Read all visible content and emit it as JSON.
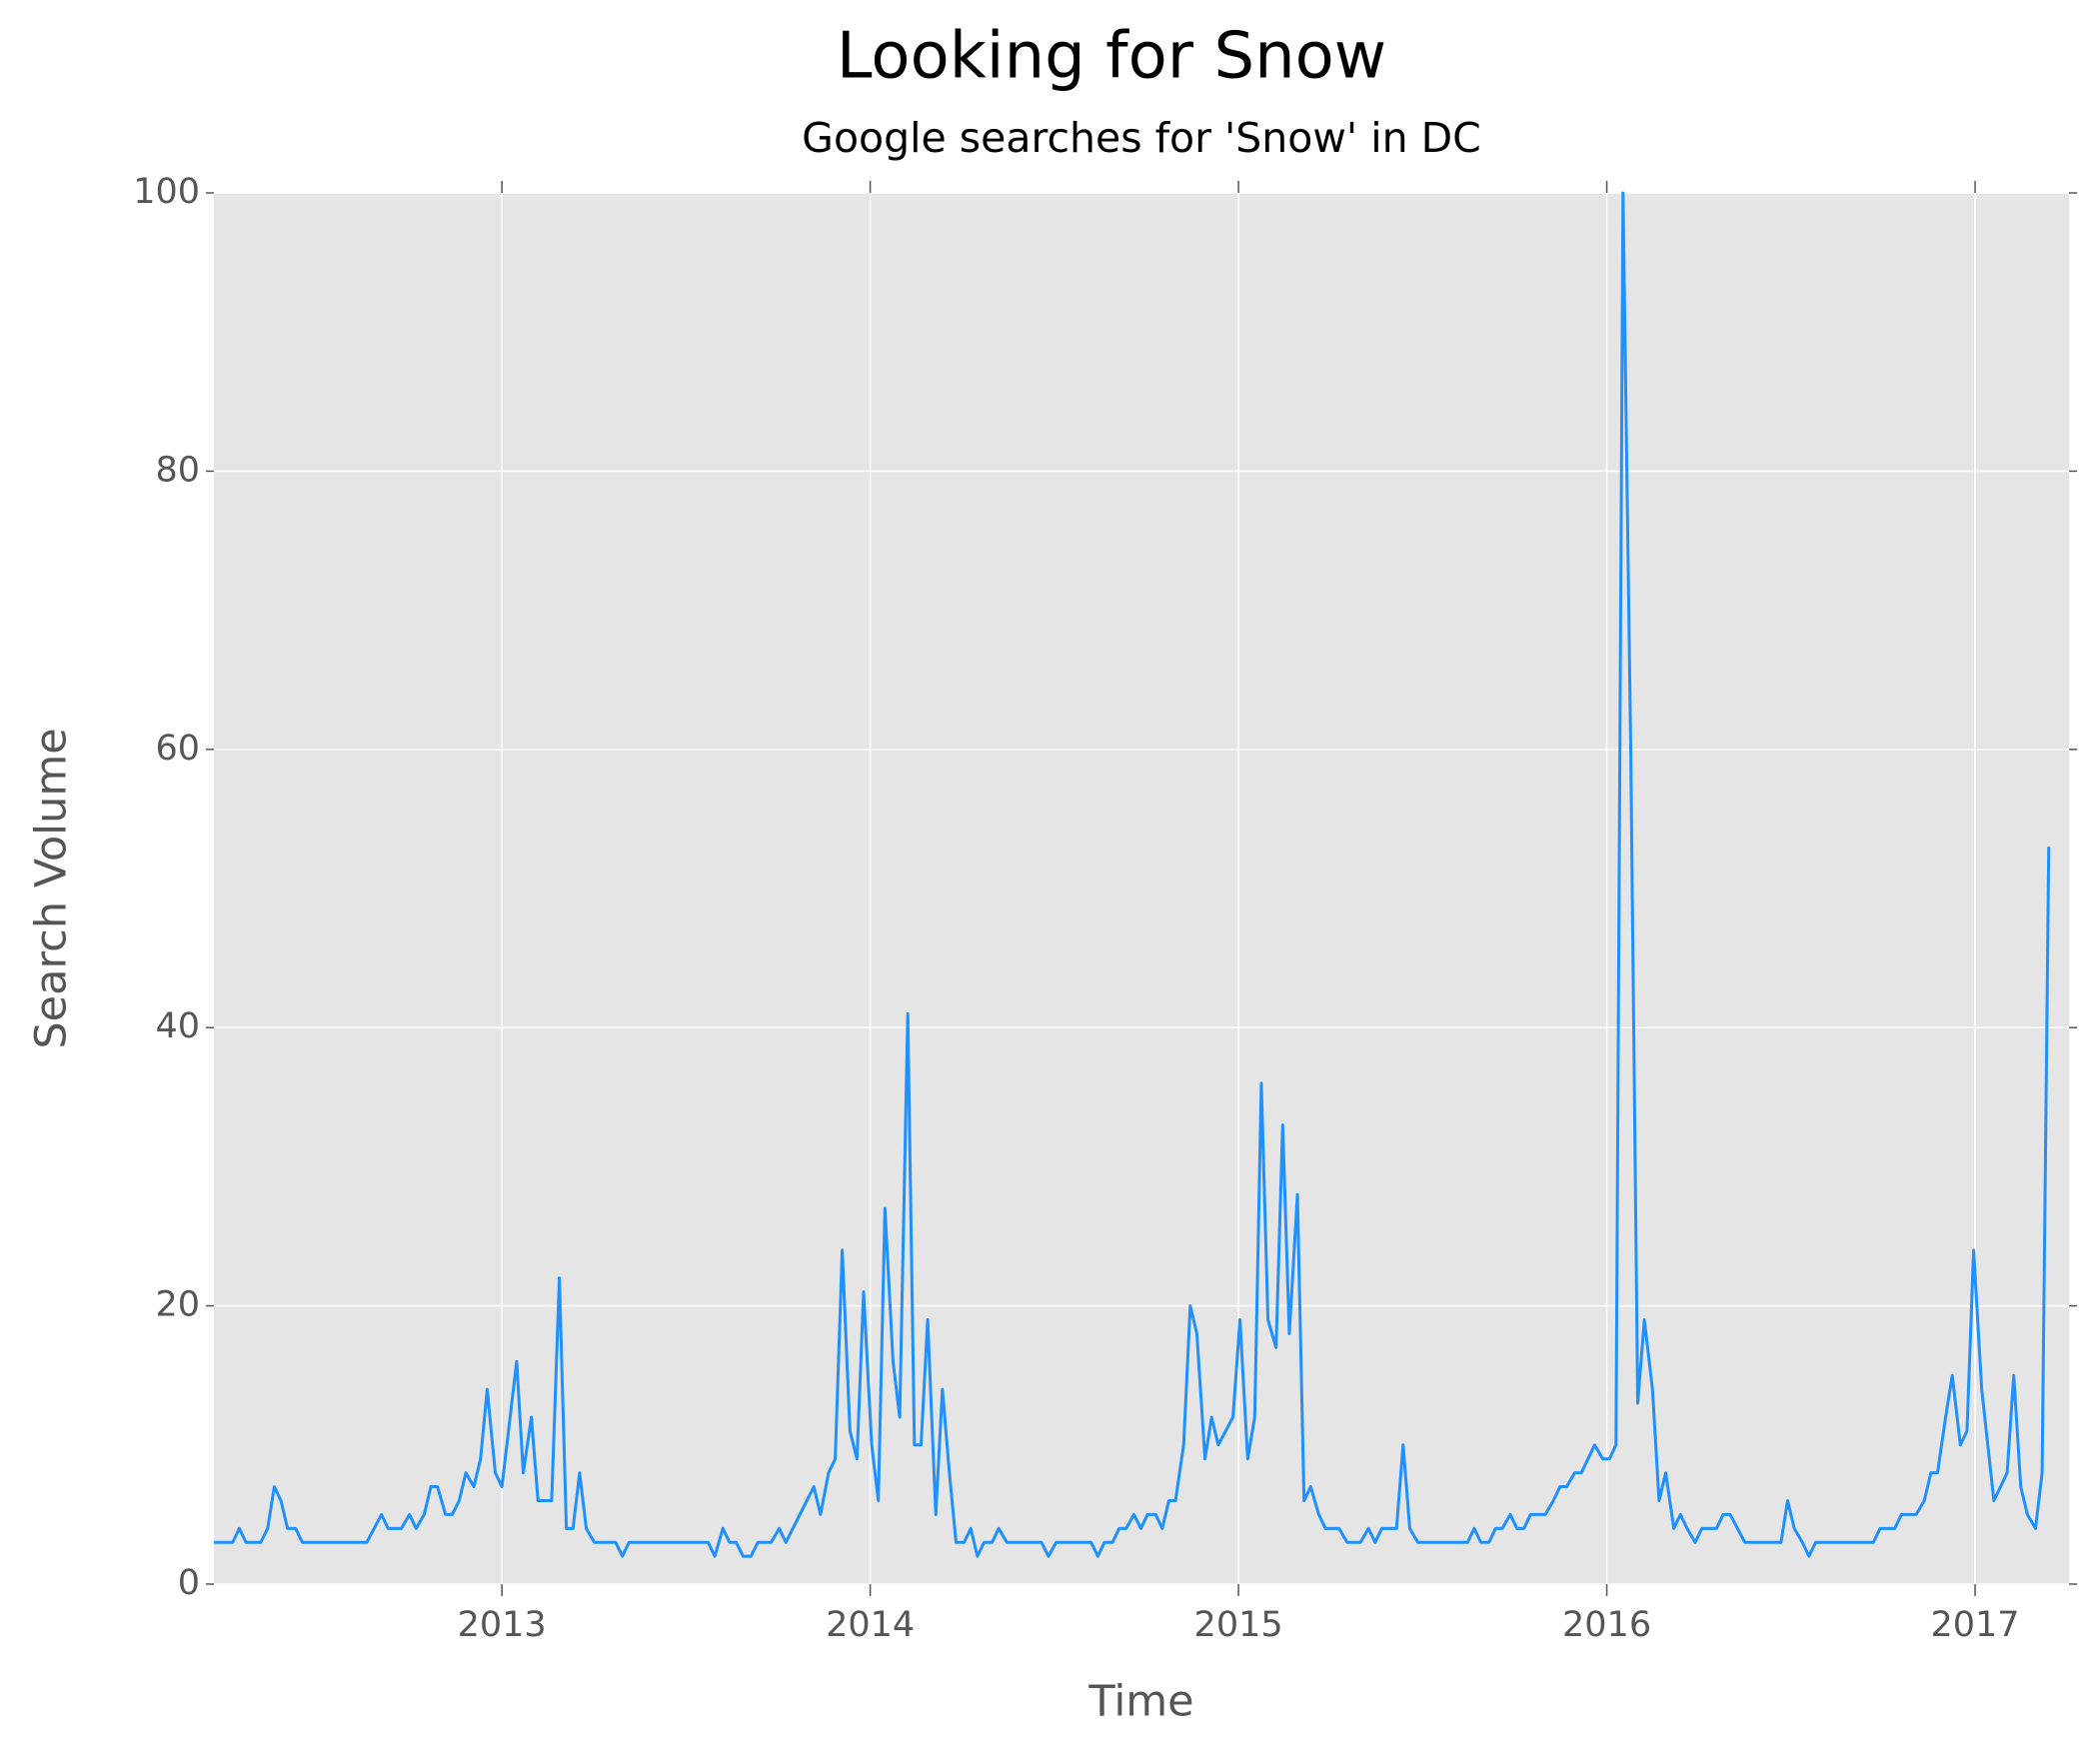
{
  "chart_data": {
    "type": "line",
    "title": "Looking for Snow",
    "subtitle": "Google searches for 'Snow' in DC",
    "x_label": "Time",
    "y_label": "Search Volume",
    "color": "#1e90ff",
    "grid": true,
    "xlim": [
      2012.218,
      2017.255
    ],
    "ylim": [
      0,
      100
    ],
    "xticks": [
      2013,
      2014,
      2015,
      2016,
      2017
    ],
    "yticks": [
      0,
      20,
      40,
      60,
      80,
      100
    ],
    "x": [
      2012.218,
      2012.269,
      2012.287,
      2012.305,
      2012.345,
      2012.364,
      2012.382,
      2012.4,
      2012.418,
      2012.44,
      2012.458,
      2012.633,
      2012.673,
      2012.691,
      2012.727,
      2012.749,
      2012.767,
      2012.789,
      2012.807,
      2012.825,
      2012.847,
      2012.865,
      2012.884,
      2012.902,
      2012.924,
      2012.942,
      2012.96,
      2012.982,
      2013.0,
      2013.04,
      2013.058,
      2013.08,
      2013.098,
      2013.135,
      2013.156,
      2013.175,
      2013.193,
      2013.211,
      2013.229,
      2013.251,
      2013.309,
      2013.327,
      2013.345,
      2013.56,
      2013.578,
      2013.6,
      2013.618,
      2013.636,
      2013.655,
      2013.676,
      2013.695,
      2013.731,
      2013.753,
      2013.771,
      2013.847,
      2013.865,
      2013.887,
      2013.905,
      2013.924,
      2013.945,
      2013.964,
      2013.982,
      2014.004,
      2014.022,
      2014.04,
      2014.062,
      2014.08,
      2014.102,
      2014.12,
      2014.138,
      2014.156,
      2014.178,
      2014.196,
      2014.215,
      2014.233,
      2014.255,
      2014.273,
      2014.291,
      2014.309,
      2014.331,
      2014.349,
      2014.371,
      2014.465,
      2014.484,
      2014.505,
      2014.6,
      2014.618,
      2014.636,
      2014.658,
      2014.676,
      2014.695,
      2014.716,
      2014.735,
      2014.753,
      2014.775,
      2014.793,
      2014.811,
      2014.829,
      2014.851,
      2014.869,
      2014.887,
      2014.909,
      2014.927,
      2014.945,
      2014.985,
      2015.004,
      2015.025,
      2015.044,
      2015.062,
      2015.08,
      2015.102,
      2015.12,
      2015.138,
      2015.16,
      2015.178,
      2015.196,
      2015.218,
      2015.236,
      2015.273,
      2015.295,
      2015.331,
      2015.353,
      2015.371,
      2015.389,
      2015.429,
      2015.447,
      2015.465,
      2015.487,
      2015.622,
      2015.64,
      2015.658,
      2015.68,
      2015.698,
      2015.716,
      2015.738,
      2015.756,
      2015.775,
      2015.793,
      2015.833,
      2015.855,
      2015.873,
      2015.891,
      2015.913,
      2015.931,
      2015.949,
      2015.967,
      2015.989,
      2016.007,
      2016.025,
      2016.044,
      2016.065,
      2016.084,
      2016.102,
      2016.124,
      2016.142,
      2016.16,
      2016.182,
      2016.2,
      2016.218,
      2016.24,
      2016.258,
      2016.298,
      2016.316,
      2016.335,
      2016.375,
      2016.473,
      2016.491,
      2016.509,
      2016.531,
      2016.549,
      2016.567,
      2016.724,
      2016.742,
      2016.782,
      2016.8,
      2016.84,
      2016.862,
      2016.88,
      2016.898,
      2016.92,
      2016.938,
      2016.96,
      2016.978,
      2016.996,
      2017.018,
      2017.051,
      2017.069,
      2017.087,
      2017.105,
      2017.124,
      2017.142,
      2017.164,
      2017.182,
      2017.2
    ],
    "values": [
      3,
      3,
      4,
      3,
      3,
      4,
      7,
      6,
      4,
      4,
      3,
      3,
      5,
      4,
      4,
      5,
      4,
      5,
      7,
      7,
      5,
      5,
      6,
      8,
      7,
      9,
      14,
      8,
      7,
      16,
      8,
      12,
      6,
      6,
      22,
      4,
      4,
      8,
      4,
      3,
      3,
      2,
      3,
      3,
      2,
      4,
      3,
      3,
      2,
      2,
      3,
      3,
      4,
      3,
      7,
      5,
      8,
      9,
      24,
      11,
      9,
      21,
      10,
      6,
      27,
      16,
      12,
      41,
      10,
      10,
      19,
      5,
      14,
      8,
      3,
      3,
      4,
      2,
      3,
      3,
      4,
      3,
      3,
      2,
      3,
      3,
      2,
      3,
      3,
      4,
      4,
      5,
      4,
      5,
      5,
      4,
      6,
      6,
      10,
      20,
      18,
      9,
      12,
      10,
      12,
      19,
      9,
      12,
      36,
      19,
      17,
      33,
      18,
      28,
      6,
      7,
      5,
      4,
      4,
      3,
      3,
      4,
      3,
      4,
      4,
      10,
      4,
      3,
      3,
      4,
      3,
      3,
      4,
      4,
      5,
      4,
      4,
      5,
      5,
      6,
      7,
      7,
      8,
      8,
      9,
      10,
      9,
      9,
      10,
      100,
      60,
      13,
      19,
      14,
      6,
      8,
      4,
      5,
      4,
      3,
      4,
      4,
      5,
      5,
      3,
      3,
      6,
      4,
      3,
      2,
      3,
      3,
      4,
      4,
      5,
      5,
      6,
      8,
      8,
      12,
      15,
      10,
      11,
      24,
      14,
      6,
      7,
      8,
      15,
      7,
      5,
      4,
      8,
      53
    ]
  }
}
